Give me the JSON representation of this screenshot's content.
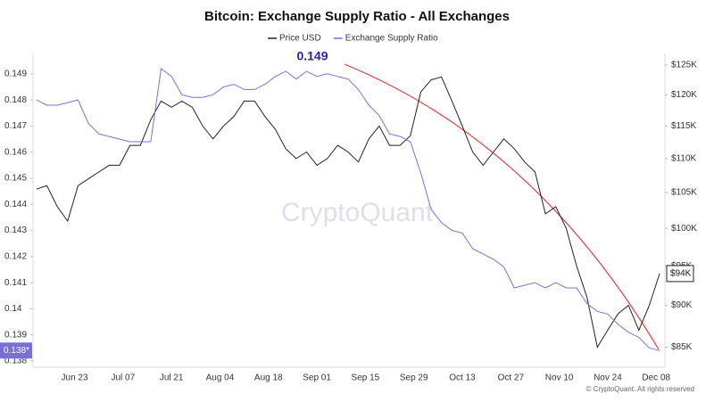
{
  "chart_data": {
    "type": "line",
    "title": "Bitcoin: Exchange Supply Ratio - All Exchanges",
    "x": [
      "Jun 12",
      "Jun 15",
      "Jun 18",
      "Jun 21",
      "Jun 24",
      "Jun 27",
      "Jun 30",
      "Jul 03",
      "Jul 06",
      "Jul 09",
      "Jul 12",
      "Jul 15",
      "Jul 18",
      "Jul 21",
      "Jul 24",
      "Jul 27",
      "Jul 30",
      "Aug 02",
      "Aug 05",
      "Aug 08",
      "Aug 11",
      "Aug 14",
      "Aug 17",
      "Aug 20",
      "Aug 23",
      "Aug 26",
      "Aug 29",
      "Sep 01",
      "Sep 04",
      "Sep 07",
      "Sep 10",
      "Sep 13",
      "Sep 16",
      "Sep 19",
      "Sep 22",
      "Sep 25",
      "Sep 28",
      "Oct 01",
      "Oct 04",
      "Oct 07",
      "Oct 10",
      "Oct 13",
      "Oct 16",
      "Oct 19",
      "Oct 22",
      "Oct 25",
      "Oct 28",
      "Oct 31",
      "Nov 03",
      "Nov 06",
      "Nov 09",
      "Nov 12",
      "Nov 15",
      "Nov 18",
      "Nov 21",
      "Nov 24",
      "Nov 27",
      "Nov 30",
      "Dec 03",
      "Dec 06",
      "Dec 09"
    ],
    "xlim": [
      "Jun 11",
      "Dec 10"
    ],
    "xticks": [
      "Jun 23",
      "Jul 07",
      "Jul 21",
      "Aug 04",
      "Aug 18",
      "Sep 01",
      "Sep 15",
      "Sep 29",
      "Oct 13",
      "Oct 27",
      "Nov 10",
      "Nov 24",
      "Dec 08"
    ],
    "series": [
      {
        "name": "Price USD",
        "color": "#222222",
        "axis": "y2",
        "badge": "$94K",
        "values": [
          105500,
          106000,
          103000,
          101000,
          106000,
          107000,
          108000,
          109000,
          109000,
          112000,
          112000,
          116000,
          119000,
          118000,
          119000,
          118000,
          115000,
          113000,
          115000,
          116500,
          119000,
          119000,
          116500,
          114500,
          111500,
          110000,
          111000,
          109000,
          110000,
          112000,
          111000,
          109500,
          113000,
          115000,
          112000,
          112000,
          113500,
          120500,
          122500,
          123000,
          119000,
          115000,
          111000,
          109000,
          111000,
          113000,
          111500,
          109500,
          108000,
          102000,
          103000,
          100000,
          95000,
          91000,
          85000,
          87000,
          89000,
          90000,
          87000,
          90000,
          94000
        ]
      },
      {
        "name": "Exchange Supply Ratio",
        "color": "#7b6fd6",
        "axis": "y",
        "badge": "0.138*",
        "values": [
          0.148,
          0.1478,
          0.1478,
          0.1479,
          0.148,
          0.1471,
          0.1467,
          0.1466,
          0.1465,
          0.1464,
          0.1464,
          0.1464,
          0.1492,
          0.1489,
          0.1482,
          0.1481,
          0.1481,
          0.1482,
          0.1485,
          0.1486,
          0.1484,
          0.1484,
          0.1486,
          0.1489,
          0.1491,
          0.1488,
          0.1491,
          0.1489,
          0.149,
          0.1489,
          0.1488,
          0.1484,
          0.1478,
          0.1474,
          0.1467,
          0.1466,
          0.1464,
          0.1452,
          0.1438,
          0.1433,
          0.143,
          0.1429,
          0.1423,
          0.1421,
          0.1419,
          0.1416,
          0.1408,
          0.1409,
          0.141,
          0.1408,
          0.141,
          0.1408,
          0.1408,
          0.1402,
          0.1399,
          0.1398,
          0.1394,
          0.1391,
          0.1389,
          0.1385,
          0.1384
        ]
      }
    ],
    "ylim": [
      0.13776,
      0.14978
    ],
    "yticks": [
      0.138,
      0.139,
      0.14,
      0.141,
      0.142,
      0.143,
      0.144,
      0.145,
      0.146,
      0.147,
      0.148,
      0.149
    ],
    "y2lim": [
      82700,
      127000
    ],
    "y2log": true,
    "y2ticks": [
      {
        "value": 85000,
        "label": "$85K"
      },
      {
        "value": 90000,
        "label": "$90K"
      },
      {
        "value": 95000,
        "label": "$95K"
      },
      {
        "value": 100000,
        "label": "$100K"
      },
      {
        "value": 105000,
        "label": "$105K"
      },
      {
        "value": 110000,
        "label": "$110K"
      },
      {
        "value": 115000,
        "label": "$115K"
      },
      {
        "value": 120000,
        "label": "$120K"
      },
      {
        "value": 125000,
        "label": "$125K"
      }
    ],
    "grid": false,
    "annotation": "0.149",
    "watermark": "CryptoQuant",
    "footer": "© CryptoQuant. All rights reserved"
  }
}
